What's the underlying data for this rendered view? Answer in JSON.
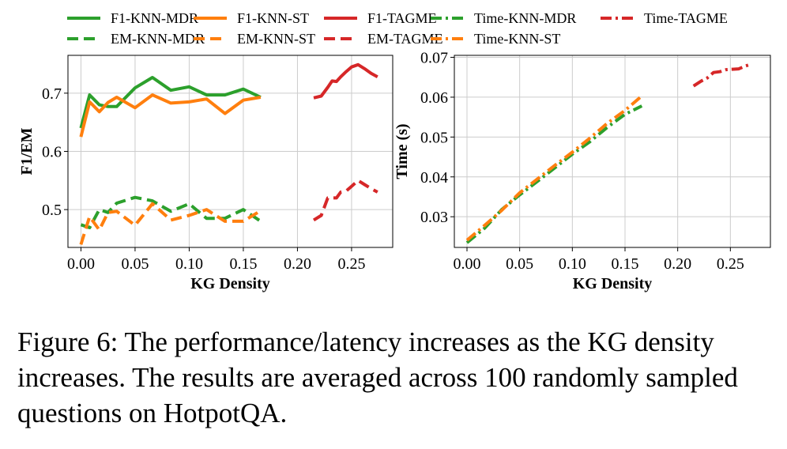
{
  "legend": [
    {
      "label": "F1-KNN-MDR",
      "color": "#2ca02c",
      "dash": "solid"
    },
    {
      "label": "F1-KNN-ST",
      "color": "#ff7f0e",
      "dash": "solid"
    },
    {
      "label": "F1-TAGME",
      "color": "#d62728",
      "dash": "solid"
    },
    {
      "label": "Time-KNN-MDR",
      "color": "#2ca02c",
      "dash": "dashdot"
    },
    {
      "label": "Time-TAGME",
      "color": "#d62728",
      "dash": "dashdot"
    },
    {
      "label": "EM-KNN-MDR",
      "color": "#2ca02c",
      "dash": "dashed"
    },
    {
      "label": "EM-KNN-ST",
      "color": "#ff7f0e",
      "dash": "dashed"
    },
    {
      "label": "EM-TAGME",
      "color": "#d62728",
      "dash": "dashed"
    },
    {
      "label": "Time-KNN-ST",
      "color": "#ff7f0e",
      "dash": "dashdot"
    }
  ],
  "chart_data": [
    {
      "type": "line",
      "xlabel": "KG Density",
      "ylabel": "F1/EM",
      "xlim": [
        -0.012,
        0.288
      ],
      "ylim": [
        0.435,
        0.765
      ],
      "xticks": [
        "0.00",
        "0.05",
        "0.10",
        "0.15",
        "0.20",
        "0.25"
      ],
      "xtick_values": [
        0.0,
        0.05,
        0.1,
        0.15,
        0.2,
        0.25
      ],
      "yticks": [
        "0.5",
        "0.6",
        "0.7"
      ],
      "ytick_values": [
        0.5,
        0.6,
        0.7
      ],
      "grid": true,
      "series": [
        {
          "name": "F1-KNN-MDR",
          "color": "#2ca02c",
          "dash": "solid",
          "x": [
            0.0,
            0.008,
            0.017,
            0.025,
            0.033,
            0.05,
            0.066,
            0.083,
            0.1,
            0.116,
            0.133,
            0.15,
            0.166
          ],
          "y": [
            0.64,
            0.697,
            0.68,
            0.677,
            0.677,
            0.709,
            0.727,
            0.705,
            0.711,
            0.697,
            0.697,
            0.707,
            0.693
          ]
        },
        {
          "name": "F1-KNN-ST",
          "color": "#ff7f0e",
          "dash": "solid",
          "x": [
            0.0,
            0.008,
            0.017,
            0.025,
            0.033,
            0.05,
            0.066,
            0.083,
            0.1,
            0.116,
            0.133,
            0.15,
            0.166
          ],
          "y": [
            0.625,
            0.685,
            0.668,
            0.684,
            0.693,
            0.675,
            0.697,
            0.683,
            0.685,
            0.69,
            0.665,
            0.688,
            0.693
          ]
        },
        {
          "name": "F1-TAGME",
          "color": "#d62728",
          "dash": "solid",
          "x": [
            0.215,
            0.222,
            0.228,
            0.232,
            0.236,
            0.24,
            0.245,
            0.25,
            0.256,
            0.262,
            0.268,
            0.274
          ],
          "y": [
            0.692,
            0.695,
            0.71,
            0.721,
            0.72,
            0.728,
            0.737,
            0.745,
            0.749,
            0.742,
            0.734,
            0.728
          ]
        },
        {
          "name": "EM-KNN-MDR",
          "color": "#2ca02c",
          "dash": "dashed",
          "x": [
            0.0,
            0.008,
            0.017,
            0.025,
            0.033,
            0.05,
            0.066,
            0.083,
            0.1,
            0.116,
            0.133,
            0.15,
            0.166
          ],
          "y": [
            0.474,
            0.469,
            0.5,
            0.495,
            0.511,
            0.521,
            0.515,
            0.497,
            0.51,
            0.485,
            0.485,
            0.5,
            0.48
          ]
        },
        {
          "name": "EM-KNN-ST",
          "color": "#ff7f0e",
          "dash": "dashed",
          "x": [
            0.0,
            0.008,
            0.017,
            0.025,
            0.033,
            0.05,
            0.066,
            0.083,
            0.1,
            0.116,
            0.133,
            0.15,
            0.166
          ],
          "y": [
            0.44,
            0.488,
            0.465,
            0.495,
            0.497,
            0.473,
            0.51,
            0.482,
            0.49,
            0.5,
            0.48,
            0.48,
            0.498
          ]
        },
        {
          "name": "EM-TAGME",
          "color": "#d62728",
          "dash": "dashed",
          "x": [
            0.215,
            0.222,
            0.228,
            0.232,
            0.236,
            0.24,
            0.245,
            0.25,
            0.256,
            0.262,
            0.268,
            0.274
          ],
          "y": [
            0.482,
            0.49,
            0.52,
            0.52,
            0.52,
            0.53,
            0.532,
            0.54,
            0.55,
            0.543,
            0.536,
            0.53
          ]
        }
      ]
    },
    {
      "type": "line",
      "xlabel": "KG Density",
      "ylabel": "Time (s)",
      "xlim": [
        -0.012,
        0.288
      ],
      "ylim": [
        0.0223,
        0.0705
      ],
      "xticks": [
        "0.00",
        "0.05",
        "0.10",
        "0.15",
        "0.20",
        "0.25"
      ],
      "xtick_values": [
        0.0,
        0.05,
        0.1,
        0.15,
        0.2,
        0.25
      ],
      "yticks": [
        "0.03",
        "0.04",
        "0.05",
        "0.06",
        "0.07"
      ],
      "ytick_values": [
        0.03,
        0.04,
        0.05,
        0.06,
        0.07
      ],
      "grid": true,
      "series": [
        {
          "name": "Time-KNN-MDR",
          "color": "#2ca02c",
          "dash": "dashdot",
          "x": [
            0.0,
            0.017,
            0.033,
            0.05,
            0.066,
            0.083,
            0.1,
            0.116,
            0.133,
            0.15,
            0.166
          ],
          "y": [
            0.0235,
            0.0272,
            0.0318,
            0.0355,
            0.0387,
            0.0422,
            0.0457,
            0.0487,
            0.0524,
            0.0557,
            0.0578
          ]
        },
        {
          "name": "Time-KNN-ST",
          "color": "#ff7f0e",
          "dash": "dashdot",
          "x": [
            0.0,
            0.017,
            0.033,
            0.05,
            0.066,
            0.083,
            0.1,
            0.116,
            0.133,
            0.15,
            0.166
          ],
          "y": [
            0.0241,
            0.0279,
            0.0316,
            0.036,
            0.0393,
            0.0428,
            0.0462,
            0.0496,
            0.0534,
            0.0567,
            0.0603
          ]
        },
        {
          "name": "Time-TAGME",
          "color": "#d62728",
          "dash": "dashdot",
          "x": [
            0.215,
            0.222,
            0.228,
            0.234,
            0.24,
            0.246,
            0.252,
            0.258,
            0.264,
            0.27
          ],
          "y": [
            0.0628,
            0.064,
            0.0648,
            0.0662,
            0.0664,
            0.0669,
            0.067,
            0.0671,
            0.0678,
            0.0683
          ]
        }
      ]
    }
  ],
  "caption": "Figure 6: The performance/latency increases as the KG density increases. The results are averaged across 100 randomly sampled questions on HotpotQA."
}
